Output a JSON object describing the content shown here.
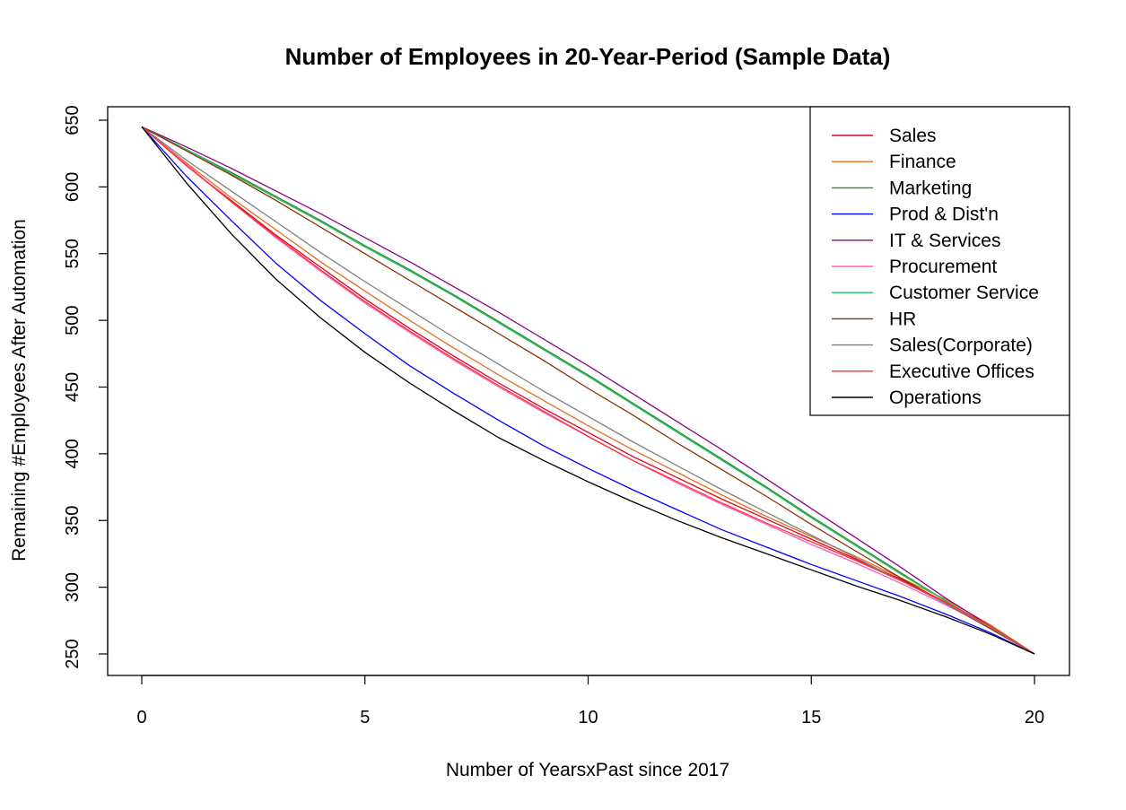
{
  "chart_data": {
    "type": "line",
    "title": "Number of Employees in 20-Year-Period (Sample Data)",
    "xlabel": "Number of YearsxPast since 2017",
    "ylabel": "Remaining #Employees After Automation",
    "xlim": [
      0,
      20
    ],
    "ylim": [
      250,
      650
    ],
    "xticks": [
      0,
      5,
      10,
      15,
      20
    ],
    "yticks": [
      250,
      300,
      350,
      400,
      450,
      500,
      550,
      600,
      650
    ],
    "grid": false,
    "legend_position": "top-right",
    "x": [
      0,
      1,
      2,
      3,
      4,
      5,
      6,
      7,
      8,
      9,
      10,
      11,
      12,
      13,
      14,
      15,
      16,
      17,
      18,
      19,
      20
    ],
    "series": [
      {
        "name": "Sales",
        "color": "#E8001C",
        "values": [
          645,
          616,
          590,
          564,
          540,
          516,
          494,
          473,
          453,
          434,
          416,
          398,
          382,
          366,
          351,
          336,
          321,
          306,
          289,
          271,
          250
        ]
      },
      {
        "name": "Finance",
        "color": "#E07020",
        "values": [
          645,
          618,
          592,
          568,
          544,
          522,
          500,
          479,
          459,
          440,
          421,
          403,
          386,
          369,
          353,
          338,
          323,
          307,
          291,
          272,
          250
        ]
      },
      {
        "name": "Marketing",
        "color": "#2E8B2E",
        "values": [
          645,
          628,
          611,
          593,
          575,
          556,
          538,
          519,
          499,
          479,
          459,
          438,
          417,
          396,
          375,
          353,
          332,
          311,
          290,
          270,
          250
        ]
      },
      {
        "name": "Prod & Dist'n",
        "color": "#0000FF",
        "values": [
          645,
          608,
          575,
          543,
          515,
          490,
          466,
          445,
          425,
          406,
          389,
          373,
          358,
          343,
          330,
          317,
          305,
          293,
          280,
          266,
          250
        ]
      },
      {
        "name": "IT & Services",
        "color": "#8B008B",
        "values": [
          645,
          630,
          614,
          597,
          580,
          562,
          544,
          525,
          506,
          486,
          466,
          445,
          424,
          403,
          381,
          359,
          337,
          315,
          292,
          271,
          250
        ]
      },
      {
        "name": "Procurement",
        "color": "#FF5CC8",
        "values": [
          645,
          617,
          589,
          562,
          537,
          513,
          491,
          470,
          450,
          431,
          413,
          395,
          378,
          362,
          347,
          332,
          318,
          303,
          287,
          270,
          250
        ]
      },
      {
        "name": "Customer Service",
        "color": "#22C060",
        "values": [
          645,
          628,
          610,
          592,
          574,
          555,
          537,
          518,
          498,
          478,
          458,
          437,
          416,
          395,
          374,
          352,
          331,
          310,
          290,
          270,
          250
        ]
      },
      {
        "name": "HR",
        "color": "#8B3000",
        "values": [
          645,
          627,
          609,
          590,
          570,
          550,
          530,
          510,
          490,
          470,
          449,
          429,
          408,
          388,
          368,
          347,
          327,
          307,
          288,
          269,
          250
        ]
      },
      {
        "name": "Sales(Corporate)",
        "color": "#808080",
        "values": [
          645,
          620,
          597,
          574,
          551,
          529,
          508,
          487,
          467,
          447,
          428,
          409,
          391,
          373,
          356,
          339,
          322,
          305,
          288,
          270,
          250
        ]
      },
      {
        "name": "Executive Offices",
        "color": "#FF3030",
        "values": [
          645,
          616,
          589,
          563,
          538,
          514,
          492,
          471,
          451,
          432,
          413,
          395,
          379,
          363,
          348,
          334,
          320,
          305,
          289,
          271,
          250
        ]
      },
      {
        "name": "Operations",
        "color": "#000000",
        "values": [
          645,
          603,
          565,
          531,
          502,
          476,
          453,
          432,
          412,
          395,
          379,
          364,
          350,
          337,
          325,
          313,
          301,
          290,
          278,
          265,
          250
        ]
      }
    ]
  }
}
